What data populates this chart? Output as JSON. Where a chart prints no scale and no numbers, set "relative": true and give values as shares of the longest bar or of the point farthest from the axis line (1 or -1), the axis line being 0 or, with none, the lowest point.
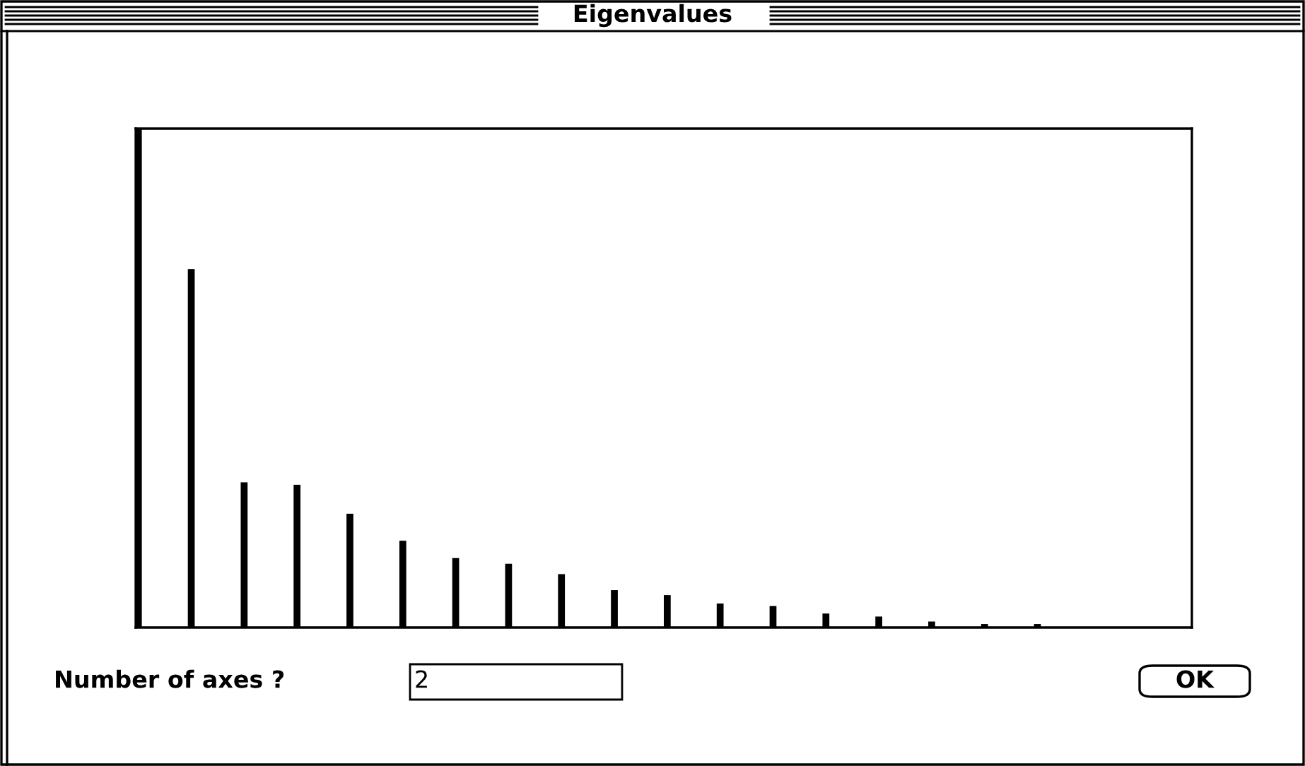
{
  "chart_data": {
    "type": "bar",
    "title": "Eigenvalues",
    "relative": true,
    "categories": [
      null,
      null,
      null,
      null,
      null,
      null,
      null,
      null,
      null,
      null,
      null,
      null,
      null,
      null,
      null,
      null,
      null,
      null
    ],
    "values": [
      1,
      0.718,
      0.291,
      0.286,
      0.228,
      0.174,
      0.139,
      0.128,
      0.107,
      0.075,
      0.065,
      0.048,
      0.043,
      0.028,
      0.022,
      0.012,
      0.007,
      0.007
    ],
    "color": "#000000",
    "annotations": [
      "Number of axes ?",
      "2",
      "OK"
    ],
    "grid": false,
    "legend": false
  }
}
